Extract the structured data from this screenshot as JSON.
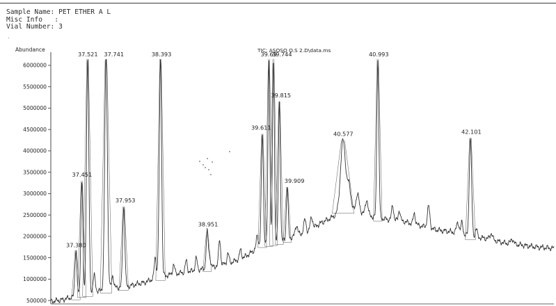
{
  "header": {
    "sample_name": "Sample Name: PET ETHER A L",
    "misc_info": "Misc Info   :",
    "vial_number": "Vial Number: 3"
  },
  "chart_data": {
    "type": "line",
    "title": "TIC: ASOSO O.S 2.D\\data.ms",
    "ylabel": "Abundance",
    "xlabel": "",
    "xlim": [
      37.08,
      43.1
    ],
    "ylim": [
      420000,
      6260000
    ],
    "yticks": [
      {
        "value": 500000,
        "label": "500000"
      },
      {
        "value": 1000000,
        "label": "1000000"
      },
      {
        "value": 1500000,
        "label": "1500000"
      },
      {
        "value": 2000000,
        "label": "2000000"
      },
      {
        "value": 2500000,
        "label": "2500000"
      },
      {
        "value": 3000000,
        "label": "3000000"
      },
      {
        "value": 3500000,
        "label": "3500000"
      },
      {
        "value": 4000000,
        "label": "4000000"
      },
      {
        "value": 4500000,
        "label": "4500000"
      },
      {
        "value": 5000000,
        "label": "5000000"
      },
      {
        "value": 5500000,
        "label": "5500000"
      },
      {
        "value": 6000000,
        "label": "6000000"
      }
    ],
    "grid": false,
    "baseline": [
      [
        37.08,
        480000
      ],
      [
        37.2,
        510000
      ],
      [
        37.3,
        560000
      ],
      [
        37.36,
        580000
      ],
      [
        37.45,
        650000
      ],
      [
        37.6,
        700000
      ],
      [
        37.75,
        760000
      ],
      [
        37.85,
        800000
      ],
      [
        38.0,
        830000
      ],
      [
        38.1,
        880000
      ],
      [
        38.2,
        920000
      ],
      [
        38.3,
        1000000
      ],
      [
        38.45,
        1080000
      ],
      [
        38.55,
        1120000
      ],
      [
        38.65,
        1150000
      ],
      [
        38.8,
        1200000
      ],
      [
        38.95,
        1260000
      ],
      [
        39.1,
        1320000
      ],
      [
        39.25,
        1400000
      ],
      [
        39.4,
        1520000
      ],
      [
        39.5,
        1650000
      ],
      [
        39.56,
        1800000
      ],
      [
        39.7,
        1850000
      ],
      [
        39.85,
        1900000
      ],
      [
        40.0,
        2000000
      ],
      [
        40.15,
        2100000
      ],
      [
        40.3,
        2300000
      ],
      [
        40.45,
        2450000
      ],
      [
        40.6,
        2650000
      ],
      [
        40.8,
        2550000
      ],
      [
        40.95,
        2450000
      ],
      [
        41.1,
        2400000
      ],
      [
        41.3,
        2350000
      ],
      [
        41.5,
        2250000
      ],
      [
        41.7,
        2150000
      ],
      [
        41.9,
        2100000
      ],
      [
        42.1,
        2000000
      ],
      [
        42.3,
        1950000
      ],
      [
        42.5,
        1850000
      ],
      [
        42.7,
        1800000
      ],
      [
        42.9,
        1750000
      ],
      [
        43.1,
        1720000
      ]
    ],
    "peaks": [
      {
        "rt": 37.38,
        "label": "37.380",
        "abundance": 1680000,
        "width": 0.012
      },
      {
        "rt": 37.451,
        "label": "37.451",
        "abundance": 3300000,
        "width": 0.012
      },
      {
        "rt": 37.521,
        "label": "37.521",
        "abundance": 6150000,
        "width": 0.014
      },
      {
        "rt": 37.741,
        "label": "37.741",
        "abundance": 6150000,
        "width": 0.016
      },
      {
        "rt": 37.953,
        "label": "37.953",
        "abundance": 2700000,
        "width": 0.013
      },
      {
        "rt": 38.393,
        "label": "38.393",
        "abundance": 6150000,
        "width": 0.013
      },
      {
        "rt": 38.951,
        "label": "38.951",
        "abundance": 2100000,
        "width": 0.012
      },
      {
        "rt": 39.611,
        "label": "39.611",
        "abundance": 4400000,
        "width": 0.012
      },
      {
        "rt": 39.69,
        "label": "39.69",
        "abundance": 6150000,
        "width": 0.011
      },
      {
        "rt": 39.744,
        "label": "39.744",
        "abundance": 6150000,
        "width": 0.011
      },
      {
        "rt": 39.815,
        "label": "39.815",
        "abundance": 5150000,
        "width": 0.011
      },
      {
        "rt": 39.909,
        "label": "39.909",
        "abundance": 3150000,
        "width": 0.011
      },
      {
        "rt": 40.577,
        "label": "40.577",
        "abundance": 4250000,
        "width": 0.03
      },
      {
        "rt": 40.993,
        "label": "40.993",
        "abundance": 6150000,
        "width": 0.012
      },
      {
        "rt": 42.101,
        "label": "42.101",
        "abundance": 4300000,
        "width": 0.014
      }
    ]
  }
}
